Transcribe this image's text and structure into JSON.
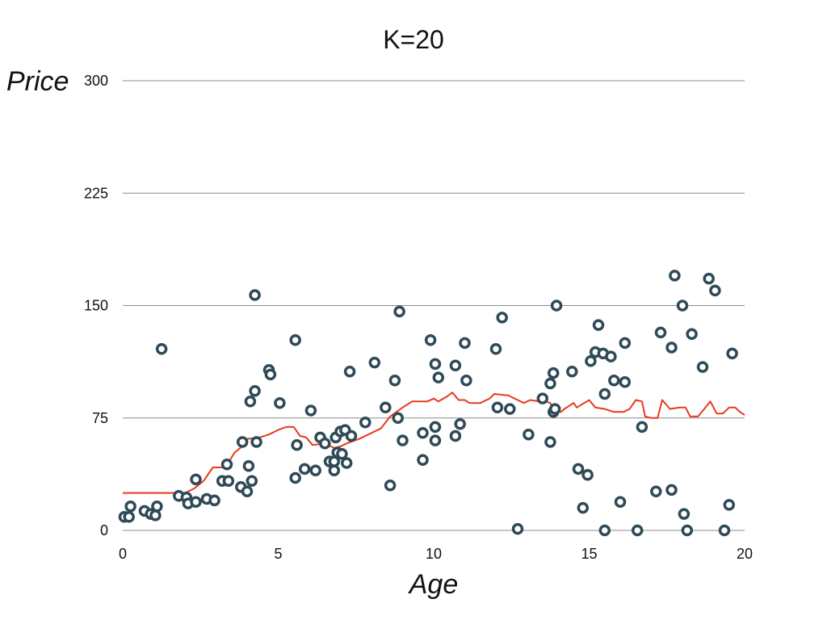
{
  "chart_data": {
    "type": "scatter",
    "title": "K=20",
    "xlabel": "Age",
    "ylabel": "Price",
    "xlim": [
      0,
      20
    ],
    "ylim": [
      0,
      300
    ],
    "x_ticks": [
      0,
      5,
      10,
      15,
      20
    ],
    "y_ticks": [
      0,
      75,
      150,
      225,
      300
    ],
    "grid": true,
    "colors": {
      "points_stroke": "#2f4a57",
      "points_fill": "#ffffff",
      "line": "#e8391d",
      "grid": "#8c8c8c"
    },
    "series": [
      {
        "type": "scatter",
        "points": [
          [
            0.05,
            9
          ],
          [
            0.2,
            9
          ],
          [
            0.25,
            16
          ],
          [
            0.7,
            13
          ],
          [
            0.9,
            11
          ],
          [
            1.05,
            10
          ],
          [
            1.1,
            16
          ],
          [
            1.25,
            121
          ],
          [
            1.8,
            23
          ],
          [
            2.05,
            22
          ],
          [
            2.1,
            18
          ],
          [
            2.35,
            19
          ],
          [
            2.35,
            34
          ],
          [
            2.7,
            21
          ],
          [
            2.95,
            20
          ],
          [
            3.2,
            33
          ],
          [
            3.35,
            44
          ],
          [
            3.4,
            33
          ],
          [
            3.8,
            29
          ],
          [
            3.85,
            59
          ],
          [
            4.0,
            26
          ],
          [
            4.05,
            43
          ],
          [
            4.1,
            86
          ],
          [
            4.15,
            33
          ],
          [
            4.25,
            157
          ],
          [
            4.25,
            93
          ],
          [
            4.3,
            59
          ],
          [
            4.7,
            107
          ],
          [
            4.75,
            104
          ],
          [
            5.05,
            85
          ],
          [
            5.55,
            127
          ],
          [
            5.55,
            35
          ],
          [
            5.6,
            57
          ],
          [
            5.85,
            41
          ],
          [
            6.05,
            80
          ],
          [
            6.2,
            40
          ],
          [
            6.35,
            62
          ],
          [
            6.5,
            58
          ],
          [
            6.65,
            46
          ],
          [
            6.8,
            46
          ],
          [
            6.8,
            40
          ],
          [
            6.85,
            62
          ],
          [
            6.9,
            52
          ],
          [
            7.0,
            66
          ],
          [
            7.05,
            51
          ],
          [
            7.15,
            67
          ],
          [
            7.2,
            45
          ],
          [
            7.3,
            106
          ],
          [
            7.35,
            63
          ],
          [
            7.8,
            72
          ],
          [
            8.1,
            112
          ],
          [
            8.45,
            82
          ],
          [
            8.6,
            30
          ],
          [
            8.75,
            100
          ],
          [
            8.85,
            75
          ],
          [
            8.9,
            146
          ],
          [
            9.0,
            60
          ],
          [
            9.65,
            65
          ],
          [
            9.65,
            47
          ],
          [
            9.9,
            127
          ],
          [
            10.05,
            111
          ],
          [
            10.05,
            69
          ],
          [
            10.05,
            60
          ],
          [
            10.15,
            102
          ],
          [
            10.7,
            110
          ],
          [
            10.7,
            63
          ],
          [
            10.85,
            71
          ],
          [
            11.0,
            125
          ],
          [
            11.05,
            100
          ],
          [
            12.0,
            121
          ],
          [
            12.05,
            82
          ],
          [
            12.2,
            142
          ],
          [
            12.45,
            81
          ],
          [
            12.7,
            1
          ],
          [
            13.05,
            64
          ],
          [
            13.5,
            88
          ],
          [
            13.75,
            98
          ],
          [
            13.75,
            59
          ],
          [
            13.85,
            79
          ],
          [
            13.85,
            105
          ],
          [
            13.9,
            81
          ],
          [
            13.95,
            150
          ],
          [
            14.45,
            106
          ],
          [
            14.65,
            41
          ],
          [
            14.8,
            15
          ],
          [
            14.95,
            37
          ],
          [
            15.05,
            113
          ],
          [
            15.2,
            119
          ],
          [
            15.3,
            137
          ],
          [
            15.45,
            118
          ],
          [
            15.5,
            0
          ],
          [
            15.5,
            91
          ],
          [
            15.7,
            116
          ],
          [
            15.8,
            100
          ],
          [
            16.0,
            19
          ],
          [
            16.15,
            99
          ],
          [
            16.15,
            125
          ],
          [
            16.55,
            0
          ],
          [
            16.7,
            69
          ],
          [
            17.15,
            26
          ],
          [
            17.3,
            132
          ],
          [
            17.65,
            122
          ],
          [
            17.65,
            27
          ],
          [
            17.75,
            170
          ],
          [
            18.0,
            150
          ],
          [
            18.05,
            11
          ],
          [
            18.15,
            0
          ],
          [
            18.3,
            131
          ],
          [
            18.65,
            109
          ],
          [
            18.85,
            168
          ],
          [
            19.05,
            160
          ],
          [
            19.35,
            0
          ],
          [
            19.5,
            17
          ],
          [
            19.6,
            118
          ]
        ]
      },
      {
        "type": "line",
        "points": [
          [
            0,
            25
          ],
          [
            1.5,
            25
          ],
          [
            2.0,
            25
          ],
          [
            2.3,
            28
          ],
          [
            2.6,
            33
          ],
          [
            2.9,
            42
          ],
          [
            3.3,
            42
          ],
          [
            3.6,
            52
          ],
          [
            3.9,
            57
          ],
          [
            4.0,
            61
          ],
          [
            4.4,
            62
          ],
          [
            4.7,
            64
          ],
          [
            5.0,
            67
          ],
          [
            5.25,
            69
          ],
          [
            5.5,
            69
          ],
          [
            5.7,
            63
          ],
          [
            5.9,
            62
          ],
          [
            6.1,
            57
          ],
          [
            6.5,
            58
          ],
          [
            6.8,
            55
          ],
          [
            7.0,
            56
          ],
          [
            7.2,
            58
          ],
          [
            7.6,
            61
          ],
          [
            8.0,
            65
          ],
          [
            8.3,
            68
          ],
          [
            8.6,
            76
          ],
          [
            9.0,
            82
          ],
          [
            9.3,
            86
          ],
          [
            9.8,
            86
          ],
          [
            10.0,
            88
          ],
          [
            10.15,
            86
          ],
          [
            10.4,
            89
          ],
          [
            10.6,
            92
          ],
          [
            10.8,
            87
          ],
          [
            11.0,
            87
          ],
          [
            11.15,
            85
          ],
          [
            11.5,
            85
          ],
          [
            11.8,
            88
          ],
          [
            11.95,
            91
          ],
          [
            12.4,
            90
          ],
          [
            12.6,
            88
          ],
          [
            12.9,
            85
          ],
          [
            13.1,
            87
          ],
          [
            13.4,
            86
          ],
          [
            13.6,
            86
          ],
          [
            13.75,
            85
          ],
          [
            13.85,
            79
          ],
          [
            14.1,
            79
          ],
          [
            14.2,
            81
          ],
          [
            14.5,
            85
          ],
          [
            14.6,
            82
          ],
          [
            15.0,
            87
          ],
          [
            15.2,
            82
          ],
          [
            15.5,
            81
          ],
          [
            15.8,
            79
          ],
          [
            16.1,
            79
          ],
          [
            16.3,
            81
          ],
          [
            16.5,
            87
          ],
          [
            16.7,
            86
          ],
          [
            16.8,
            76
          ],
          [
            17.0,
            75
          ],
          [
            17.2,
            75
          ],
          [
            17.35,
            87
          ],
          [
            17.6,
            81
          ],
          [
            17.9,
            82
          ],
          [
            18.1,
            82
          ],
          [
            18.25,
            76
          ],
          [
            18.5,
            76
          ],
          [
            18.9,
            86
          ],
          [
            19.1,
            78
          ],
          [
            19.3,
            78
          ],
          [
            19.5,
            82
          ],
          [
            19.7,
            82
          ],
          [
            19.85,
            79
          ],
          [
            20.0,
            77
          ]
        ]
      }
    ]
  }
}
